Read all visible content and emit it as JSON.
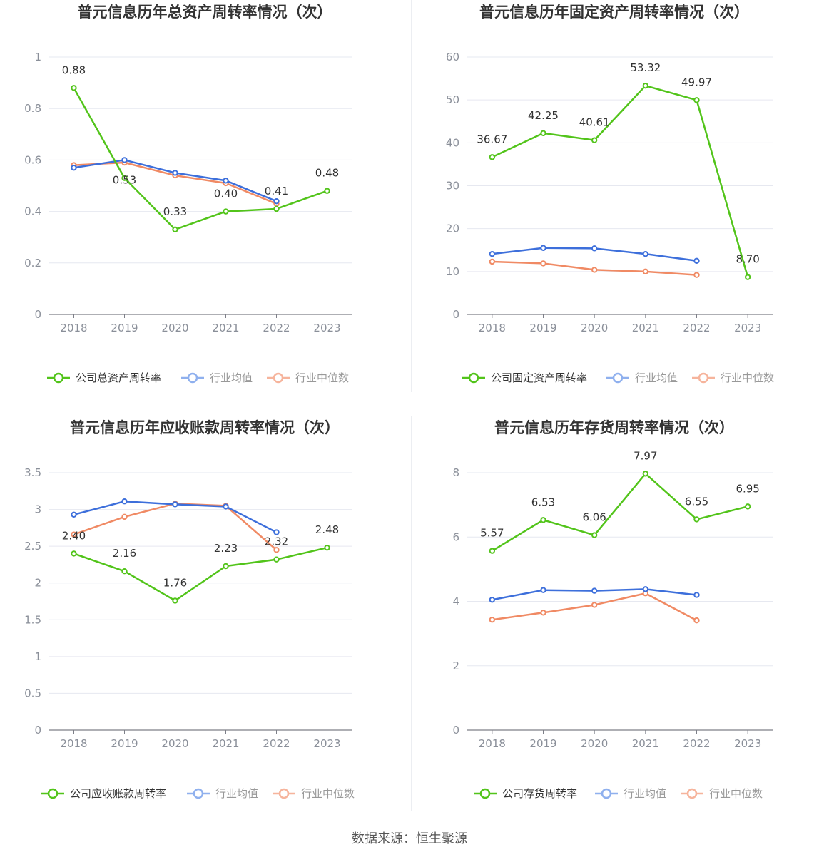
{
  "source": "数据来源：恒生聚源",
  "colors": {
    "company": "#52c41a",
    "avg": "#3d6fdb",
    "median": "#f08a64"
  },
  "charts": [
    {
      "type": "line",
      "title": "普元信息历年总资产周转率情况（次）",
      "categories": [
        "2018",
        "2019",
        "2020",
        "2021",
        "2022",
        "2023"
      ],
      "ylim": [
        0,
        1
      ],
      "yticks": [
        "0",
        "0.2",
        "0.4",
        "0.6",
        "0.8",
        "1"
      ],
      "ytick_values": [
        0,
        0.2,
        0.4,
        0.6,
        0.8,
        1
      ],
      "legend": [
        "公司总资产周转率",
        "行业均值",
        "行业中位数"
      ],
      "series": [
        {
          "name": "公司总资产周转率",
          "values": [
            0.88,
            0.53,
            0.33,
            0.4,
            0.41,
            0.48
          ],
          "labels": [
            "0.88",
            "0.53",
            "0.33",
            "0.40",
            "0.41",
            "0.48"
          ]
        },
        {
          "name": "行业均值",
          "values": [
            0.57,
            0.6,
            0.55,
            0.52,
            0.44,
            null
          ]
        },
        {
          "name": "行业中位数",
          "values": [
            0.58,
            0.59,
            0.54,
            0.51,
            0.43,
            null
          ]
        }
      ]
    },
    {
      "type": "line",
      "title": "普元信息历年固定资产周转率情况（次）",
      "categories": [
        "2018",
        "2019",
        "2020",
        "2021",
        "2022",
        "2023"
      ],
      "ylim": [
        0,
        60
      ],
      "yticks": [
        "0",
        "10",
        "20",
        "30",
        "40",
        "50",
        "60"
      ],
      "ytick_values": [
        0,
        10,
        20,
        30,
        40,
        50,
        60
      ],
      "legend": [
        "公司固定资产周转率",
        "行业均值",
        "行业中位数"
      ],
      "series": [
        {
          "name": "公司固定资产周转率",
          "values": [
            36.67,
            42.25,
            40.61,
            53.32,
            49.97,
            8.7
          ],
          "labels": [
            "36.67",
            "42.25",
            "40.61",
            "53.32",
            "49.97",
            "8.70"
          ]
        },
        {
          "name": "行业均值",
          "values": [
            14.1,
            15.5,
            15.4,
            14.1,
            12.5,
            null
          ]
        },
        {
          "name": "行业中位数",
          "values": [
            12.3,
            11.9,
            10.4,
            10.0,
            9.2,
            null
          ]
        }
      ]
    },
    {
      "type": "line",
      "title": "普元信息历年应收账款周转率情况（次）",
      "categories": [
        "2018",
        "2019",
        "2020",
        "2021",
        "2022",
        "2023"
      ],
      "ylim": [
        0,
        3.5
      ],
      "yticks": [
        "0",
        "0.5",
        "1",
        "1.5",
        "2",
        "2.5",
        "3",
        "3.5"
      ],
      "ytick_values": [
        0,
        0.5,
        1,
        1.5,
        2,
        2.5,
        3,
        3.5
      ],
      "legend": [
        "公司应收账款周转率",
        "行业均值",
        "行业中位数"
      ],
      "series": [
        {
          "name": "公司应收账款周转率",
          "values": [
            2.4,
            2.16,
            1.76,
            2.23,
            2.32,
            2.48
          ],
          "labels": [
            "2.40",
            "2.16",
            "1.76",
            "2.23",
            "2.32",
            "2.48"
          ]
        },
        {
          "name": "行业均值",
          "values": [
            2.93,
            3.11,
            3.07,
            3.04,
            2.69,
            null
          ]
        },
        {
          "name": "行业中位数",
          "values": [
            2.66,
            2.9,
            3.08,
            3.05,
            2.45,
            null
          ]
        }
      ]
    },
    {
      "type": "line",
      "title": "普元信息历年存货周转率情况（次）",
      "categories": [
        "2018",
        "2019",
        "2020",
        "2021",
        "2022",
        "2023"
      ],
      "ylim": [
        0,
        8
      ],
      "yticks": [
        "0",
        "2",
        "4",
        "6",
        "8"
      ],
      "ytick_values": [
        0,
        2,
        4,
        6,
        8
      ],
      "legend": [
        "公司存货周转率",
        "行业均值",
        "行业中位数"
      ],
      "series": [
        {
          "name": "公司存货周转率",
          "values": [
            5.57,
            6.53,
            6.06,
            7.97,
            6.55,
            6.95
          ],
          "labels": [
            "5.57",
            "6.53",
            "6.06",
            "7.97",
            "6.55",
            "6.95"
          ]
        },
        {
          "name": "行业均值",
          "values": [
            4.05,
            4.35,
            4.33,
            4.38,
            4.2,
            null
          ]
        },
        {
          "name": "行业中位数",
          "values": [
            3.43,
            3.65,
            3.89,
            4.25,
            3.41,
            null
          ]
        }
      ]
    }
  ]
}
